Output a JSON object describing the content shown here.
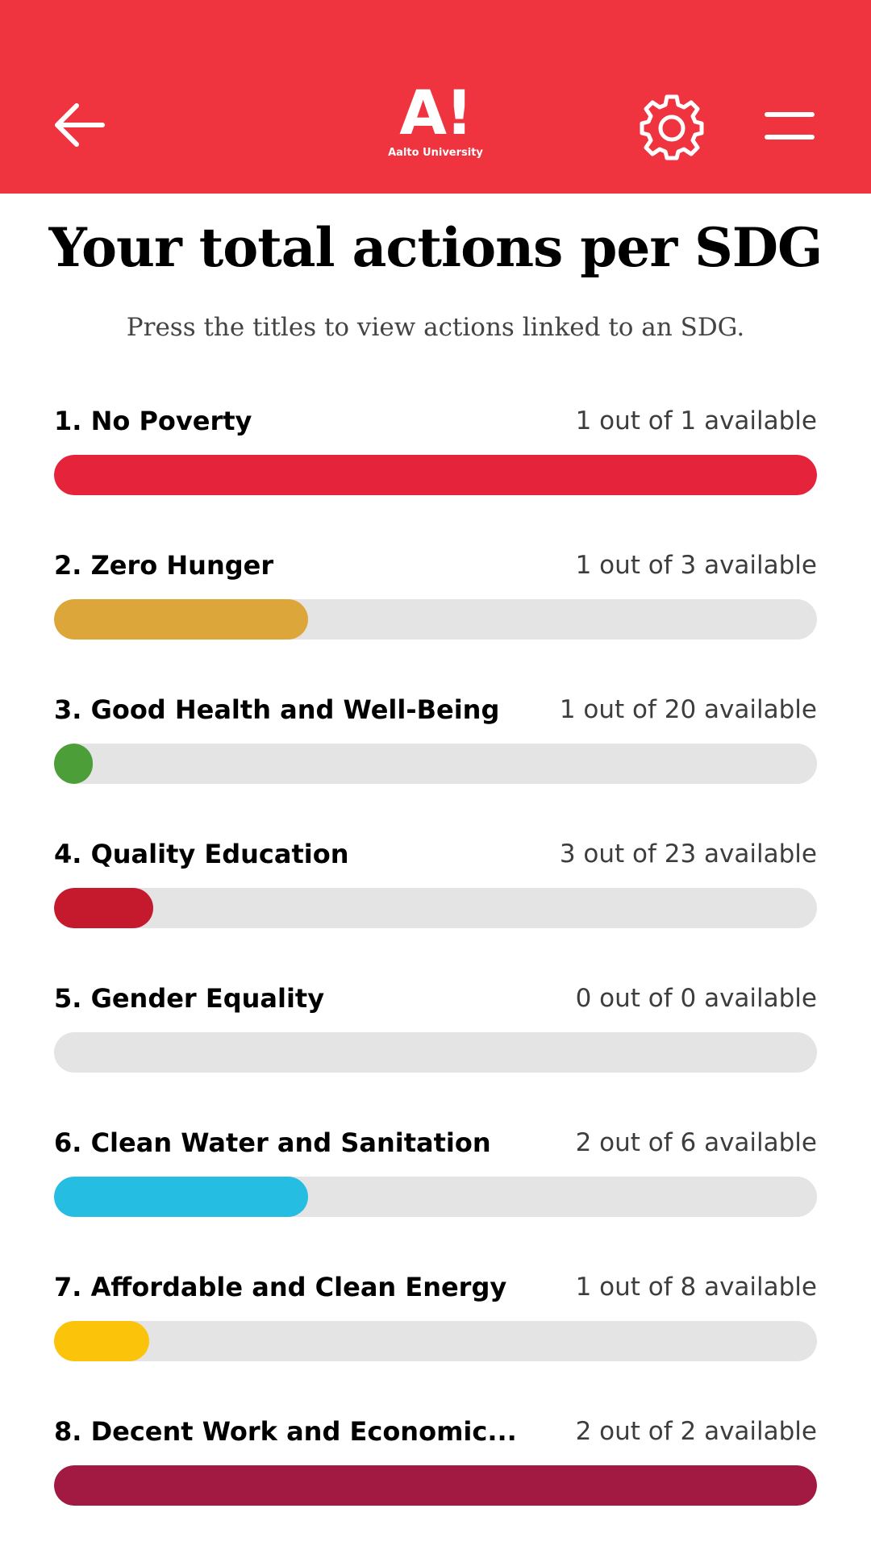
{
  "header": {
    "logo_mark": "A!",
    "logo_sub": "Aalto University",
    "background": "#ef333f",
    "icons": [
      "back-arrow-icon",
      "gear-icon",
      "hamburger-menu-icon"
    ]
  },
  "page": {
    "title": "Your total actions per SDG",
    "subtitle": "Press the titles to view actions linked to an SDG."
  },
  "sdgs": [
    {
      "label": "1. No Poverty",
      "count": "1 out of 1 available",
      "progress": 1.0,
      "color": "#e5243b"
    },
    {
      "label": "2. Zero Hunger",
      "count": "1 out of 3 available",
      "progress": 0.333,
      "color": "#dda63a"
    },
    {
      "label": "3. Good Health and Well-Being",
      "count": "1 out of 20 available",
      "progress": 0.05,
      "color": "#4c9f38"
    },
    {
      "label": "4. Quality Education",
      "count": "3 out of 23 available",
      "progress": 0.13,
      "color": "#c5192d"
    },
    {
      "label": "5. Gender Equality",
      "count": "0 out of 0 available",
      "progress": 0,
      "color": "#ff3a21"
    },
    {
      "label": "6. Clean Water and Sanitation",
      "count": "2 out of 6 available",
      "progress": 0.333,
      "color": "#26bde2"
    },
    {
      "label": "7. Affordable and Clean Energy",
      "count": "1 out of 8 available",
      "progress": 0.125,
      "color": "#fcc30b"
    },
    {
      "label": "8. Decent Work and Economic...",
      "count": "2 out of 2 available",
      "progress": 1.0,
      "color": "#a21942"
    }
  ]
}
